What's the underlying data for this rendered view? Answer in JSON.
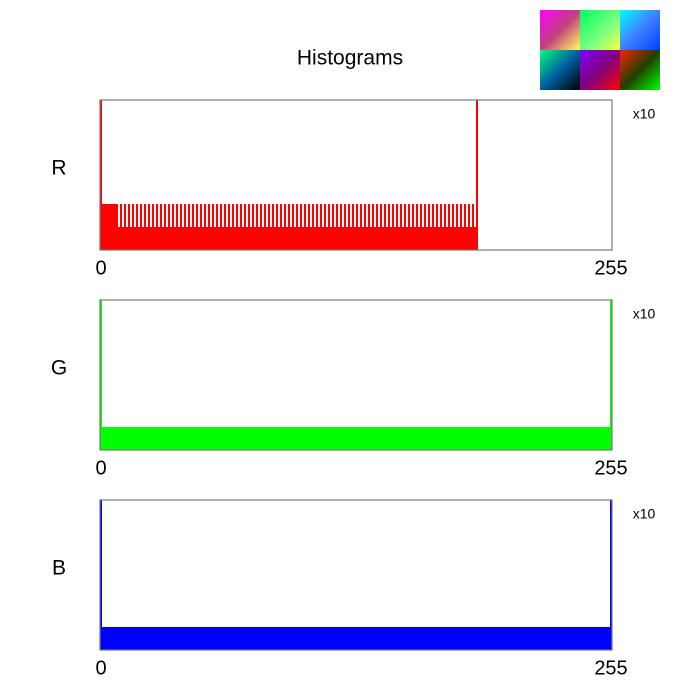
{
  "title": "Histograms",
  "chart_data": [
    {
      "type": "histogram",
      "ylabel": "R",
      "annotation": "x10",
      "color": "#ff0000",
      "xlim": [
        0,
        255
      ],
      "xticks": [
        0,
        255
      ],
      "ylim": [
        0,
        13
      ],
      "values": [
        13,
        4,
        4,
        4,
        4,
        4,
        4,
        4,
        4,
        2,
        4,
        2,
        4,
        2,
        4,
        2,
        4,
        2,
        4,
        2,
        4,
        2,
        4,
        2,
        4,
        2,
        4,
        2,
        4,
        2,
        4,
        2,
        4,
        2,
        4,
        2,
        4,
        2,
        4,
        2,
        4,
        2,
        4,
        2,
        4,
        2,
        4,
        2,
        4,
        2,
        4,
        2,
        4,
        2,
        4,
        2,
        4,
        2,
        4,
        2,
        4,
        2,
        4,
        2,
        4,
        2,
        4,
        2,
        4,
        2,
        4,
        2,
        4,
        2,
        4,
        2,
        4,
        2,
        4,
        2,
        4,
        2,
        4,
        2,
        4,
        2,
        4,
        2,
        4,
        2,
        4,
        2,
        4,
        2,
        4,
        2,
        4,
        2,
        4,
        2,
        4,
        2,
        4,
        2,
        4,
        2,
        4,
        2,
        4,
        2,
        4,
        2,
        4,
        2,
        4,
        2,
        4,
        2,
        4,
        2,
        4,
        2,
        4,
        2,
        4,
        2,
        4,
        2,
        4,
        2,
        4,
        2,
        4,
        2,
        4,
        2,
        4,
        2,
        4,
        2,
        4,
        2,
        4,
        2,
        4,
        2,
        4,
        2,
        4,
        2,
        4,
        2,
        4,
        2,
        4,
        2,
        4,
        2,
        4,
        2,
        4,
        2,
        4,
        2,
        4,
        2,
        4,
        2,
        4,
        2,
        4,
        2,
        4,
        2,
        4,
        2,
        4,
        2,
        4,
        2,
        4,
        2,
        4,
        2,
        4,
        2,
        4,
        2,
        13,
        0,
        0,
        0,
        0,
        0,
        0,
        0,
        0,
        0,
        0,
        0,
        0,
        0,
        0,
        0,
        0,
        0,
        0,
        0,
        0,
        0,
        0,
        0,
        0,
        0,
        0,
        0,
        0,
        0,
        0,
        0,
        0,
        0,
        0,
        0,
        0,
        0,
        0,
        0,
        0,
        0,
        0,
        0,
        0,
        0,
        0,
        0,
        0,
        0,
        0,
        0,
        0,
        0,
        0,
        0,
        0,
        0,
        0,
        0,
        0,
        0,
        0,
        0,
        0,
        0,
        0,
        0
      ]
    },
    {
      "type": "histogram",
      "ylabel": "G",
      "annotation": "x10",
      "color": "#00ff00",
      "xlim": [
        0,
        255
      ],
      "xticks": [
        0,
        255
      ],
      "ylim": [
        0,
        13
      ],
      "values": [
        13,
        2,
        2,
        2,
        2,
        2,
        2,
        2,
        2,
        2,
        2,
        2,
        2,
        2,
        2,
        2,
        2,
        2,
        2,
        2,
        2,
        2,
        2,
        2,
        2,
        2,
        2,
        2,
        2,
        2,
        2,
        2,
        2,
        2,
        2,
        2,
        2,
        2,
        2,
        2,
        2,
        2,
        2,
        2,
        2,
        2,
        2,
        2,
        2,
        2,
        2,
        2,
        2,
        2,
        2,
        2,
        2,
        2,
        2,
        2,
        2,
        2,
        2,
        2,
        2,
        2,
        2,
        2,
        2,
        2,
        2,
        2,
        2,
        2,
        2,
        2,
        2,
        2,
        2,
        2,
        2,
        2,
        2,
        2,
        2,
        2,
        2,
        2,
        2,
        2,
        2,
        2,
        2,
        2,
        2,
        2,
        2,
        2,
        2,
        2,
        2,
        2,
        2,
        2,
        2,
        2,
        2,
        2,
        2,
        2,
        2,
        2,
        2,
        2,
        2,
        2,
        2,
        2,
        2,
        2,
        2,
        2,
        2,
        2,
        2,
        2,
        2,
        2,
        2,
        2,
        2,
        2,
        2,
        2,
        2,
        2,
        2,
        2,
        2,
        2,
        2,
        2,
        2,
        2,
        2,
        2,
        2,
        2,
        2,
        2,
        2,
        2,
        2,
        2,
        2,
        2,
        2,
        2,
        2,
        2,
        2,
        2,
        2,
        2,
        2,
        2,
        2,
        2,
        2,
        2,
        2,
        2,
        2,
        2,
        2,
        2,
        2,
        2,
        2,
        2,
        2,
        2,
        2,
        2,
        2,
        2,
        2,
        2,
        2,
        2,
        2,
        2,
        2,
        2,
        2,
        2,
        2,
        2,
        2,
        2,
        2,
        2,
        2,
        2,
        2,
        2,
        2,
        2,
        2,
        2,
        2,
        2,
        2,
        2,
        2,
        2,
        2,
        2,
        2,
        2,
        2,
        2,
        2,
        2,
        2,
        2,
        2,
        2,
        2,
        2,
        2,
        2,
        2,
        2,
        2,
        2,
        2,
        2,
        2,
        2,
        2,
        2,
        2,
        2,
        2,
        2,
        2,
        2,
        2,
        2,
        2,
        2,
        2,
        2,
        2,
        13
      ]
    },
    {
      "type": "histogram",
      "ylabel": "B",
      "annotation": "x10",
      "color": "#0000ff",
      "xlim": [
        0,
        255
      ],
      "xticks": [
        0,
        255
      ],
      "ylim": [
        0,
        13
      ],
      "values": [
        13,
        2,
        2,
        2,
        2,
        2,
        2,
        2,
        2,
        2,
        2,
        2,
        2,
        2,
        2,
        2,
        2,
        2,
        2,
        2,
        2,
        2,
        2,
        2,
        2,
        2,
        2,
        2,
        2,
        2,
        2,
        2,
        2,
        2,
        2,
        2,
        2,
        2,
        2,
        2,
        2,
        2,
        2,
        2,
        2,
        2,
        2,
        2,
        2,
        2,
        2,
        2,
        2,
        2,
        2,
        2,
        2,
        2,
        2,
        2,
        2,
        2,
        2,
        2,
        2,
        2,
        2,
        2,
        2,
        2,
        2,
        2,
        2,
        2,
        2,
        2,
        2,
        2,
        2,
        2,
        2,
        2,
        2,
        2,
        2,
        2,
        2,
        2,
        2,
        2,
        2,
        2,
        2,
        2,
        2,
        2,
        2,
        2,
        2,
        2,
        2,
        2,
        2,
        2,
        2,
        2,
        2,
        2,
        2,
        2,
        2,
        2,
        2,
        2,
        2,
        2,
        2,
        2,
        2,
        2,
        2,
        2,
        2,
        2,
        2,
        2,
        2,
        2,
        2,
        2,
        2,
        2,
        2,
        2,
        2,
        2,
        2,
        2,
        2,
        2,
        2,
        2,
        2,
        2,
        2,
        2,
        2,
        2,
        2,
        2,
        2,
        2,
        2,
        2,
        2,
        2,
        2,
        2,
        2,
        2,
        2,
        2,
        2,
        2,
        2,
        2,
        2,
        2,
        2,
        2,
        2,
        2,
        2,
        2,
        2,
        2,
        2,
        2,
        2,
        2,
        2,
        2,
        2,
        2,
        2,
        2,
        2,
        2,
        2,
        2,
        2,
        2,
        2,
        2,
        2,
        2,
        2,
        2,
        2,
        2,
        2,
        2,
        2,
        2,
        2,
        2,
        2,
        2,
        2,
        2,
        2,
        2,
        2,
        2,
        2,
        2,
        2,
        2,
        2,
        2,
        2,
        2,
        2,
        2,
        2,
        2,
        2,
        2,
        2,
        2,
        2,
        2,
        2,
        2,
        2,
        2,
        2,
        2,
        2,
        2,
        2,
        2,
        2,
        2,
        2,
        2,
        2,
        2,
        2,
        2,
        2,
        2,
        2,
        2,
        2,
        13
      ]
    }
  ]
}
